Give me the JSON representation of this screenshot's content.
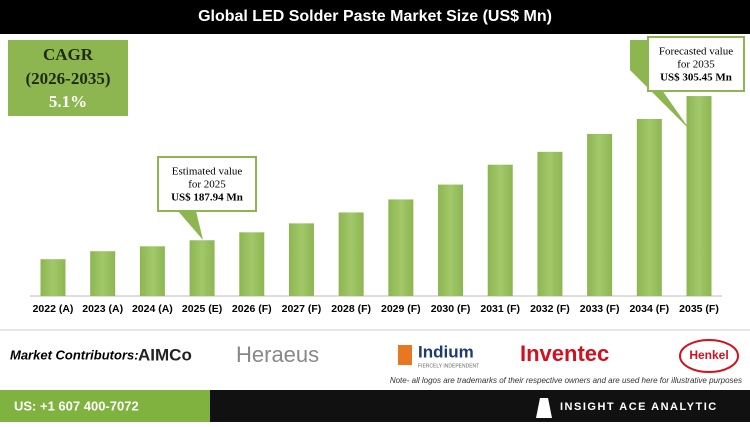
{
  "header": {
    "title": "Global LED Solder Paste Market Size (US$ Mn)"
  },
  "cagr": {
    "label": "CAGR",
    "period": "(2026-2035)",
    "value": "5.1%"
  },
  "chart_data": {
    "type": "bar",
    "categories": [
      "2022 (A)",
      "2023 (A)",
      "2024 (A)",
      "2025 (E)",
      "2026 (F)",
      "2027 (F)",
      "2028 (F)",
      "2029 (F)",
      "2030 (F)",
      "2031 (F)",
      "2032 (F)",
      "2033 (F)",
      "2034 (F)",
      "2035 (F)"
    ],
    "values": [
      172.5,
      179,
      183,
      187.94,
      194.4,
      201.7,
      210.6,
      221.2,
      233.3,
      249.5,
      260,
      274.6,
      286.8,
      305.45
    ],
    "value_labels": [
      null,
      null,
      null,
      "US$ 187.94 Mn",
      null,
      null,
      null,
      null,
      null,
      null,
      null,
      null,
      null,
      "US$ 305.45 Mn"
    ],
    "annotations": [
      [
        "Estimated value",
        "for 2025"
      ],
      [
        "Forecasted value",
        "for 2035"
      ]
    ],
    "color": "#8db651",
    "ylim": [
      142.5,
      305.5
    ]
  },
  "footer": {
    "contributors_label": "Market Contributors:",
    "logos": [
      "AIMCo",
      "Heraeus",
      "Indium",
      "Inventec",
      "Henkel"
    ],
    "indium_tagline": "FIERCELY INDEPENDENT",
    "note": "Note- all logos are trademarks of their respective owners and are used here for illustrative purposes",
    "phone": "US: +1 607 400-7072",
    "brand": "INSIGHT ACE ANALYTIC"
  }
}
